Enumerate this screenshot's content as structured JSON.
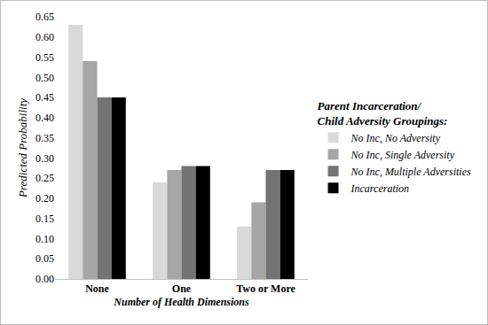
{
  "chart_data": {
    "type": "bar",
    "x_label": "Number of Health Dimensions",
    "y_label": "Predicted Probability",
    "legend_title": "Parent Incarceration/ Child Adversity Groupings:",
    "categories": [
      "None",
      "One",
      "Two or More"
    ],
    "series": [
      {
        "name": "No Inc, No Adversity",
        "color": "#d9d9d9",
        "values": [
          0.63,
          0.24,
          0.13
        ]
      },
      {
        "name": "No Inc, Single Adversity",
        "color": "#a6a6a6",
        "values": [
          0.54,
          0.27,
          0.19
        ]
      },
      {
        "name": "No Inc, Multiple Adversities",
        "color": "#737373",
        "values": [
          0.45,
          0.28,
          0.27
        ]
      },
      {
        "name": "Incarceration",
        "color": "#000000",
        "values": [
          0.45,
          0.28,
          0.27
        ]
      }
    ],
    "ylim": [
      0,
      0.65
    ],
    "yticks": [
      {
        "value": 0,
        "label": "0.00"
      },
      {
        "value": 0.05,
        "label": "0.05"
      },
      {
        "value": 0.1,
        "label": "0.10"
      },
      {
        "value": 0.15,
        "label": "0.15"
      },
      {
        "value": 0.2,
        "label": "0.20"
      },
      {
        "value": 0.25,
        "label": "0.25"
      },
      {
        "value": 0.3,
        "label": "0.30"
      },
      {
        "value": 0.35,
        "label": "0.35"
      },
      {
        "value": 0.4,
        "label": "0.40"
      },
      {
        "value": 0.45,
        "label": "0.45"
      },
      {
        "value": 0.5,
        "label": "0.50"
      },
      {
        "value": 0.55,
        "label": "0.55"
      },
      {
        "value": 0.6,
        "label": "0.60"
      },
      {
        "value": 0.65,
        "label": "0.65"
      }
    ],
    "grid": false,
    "legend": "right"
  }
}
